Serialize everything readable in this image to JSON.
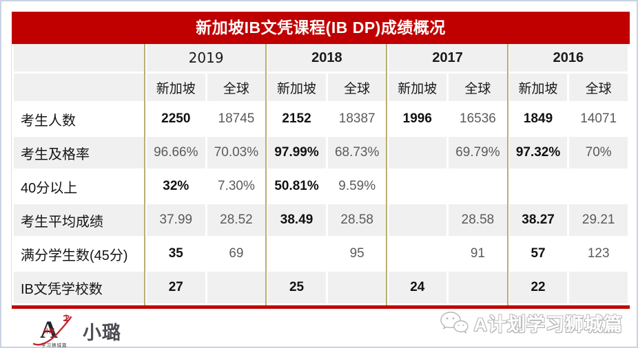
{
  "title": "新加坡IB文凭课程(IB DP)成绩概况",
  "colors": {
    "accent_red": "#c00000",
    "header_gray": "#f0f0f0",
    "group_border_tan": "#b9ae74",
    "value_black": "#111111",
    "value_gray": "#5a5a5a"
  },
  "table": {
    "years": [
      "2019",
      "2018",
      "2017",
      "2016"
    ],
    "region_headers": [
      "新加坡",
      "全球"
    ],
    "rows": [
      {
        "label": "考生人数",
        "values": [
          "2250",
          "18745",
          "2152",
          "18387",
          "1996",
          "16536",
          "1849",
          "14071"
        ],
        "styles": [
          "b",
          "g",
          "b",
          "g",
          "b",
          "g",
          "b",
          "g"
        ]
      },
      {
        "label": "考生及格率",
        "values": [
          "96.66%",
          "70.03%",
          "97.99%",
          "68.73%",
          "",
          "69.79%",
          "97.32%",
          "70%"
        ],
        "styles": [
          "g",
          "g",
          "b",
          "g",
          "e",
          "g",
          "b",
          "g"
        ]
      },
      {
        "label": "40分以上",
        "values": [
          "32%",
          "7.30%",
          "50.81%",
          "9.59%",
          "",
          "",
          "",
          ""
        ],
        "styles": [
          "b",
          "g",
          "b",
          "g",
          "e",
          "e",
          "e",
          "e"
        ]
      },
      {
        "label": "考生平均成绩",
        "values": [
          "37.99",
          "28.52",
          "38.49",
          "28.58",
          "",
          "28.58",
          "38.27",
          "29.21"
        ],
        "styles": [
          "g",
          "g",
          "b",
          "g",
          "e",
          "g",
          "b",
          "g"
        ]
      },
      {
        "label": "满分学生数(45分)",
        "values": [
          "35",
          "69",
          "",
          "95",
          "",
          "91",
          "57",
          "123"
        ],
        "styles": [
          "b",
          "g",
          "e",
          "g",
          "e",
          "g",
          "b",
          "g"
        ]
      },
      {
        "label": "IB文凭学校数",
        "values": [
          "27",
          "",
          "25",
          "",
          "24",
          "",
          "22",
          ""
        ],
        "styles": [
          "b",
          "e",
          "b",
          "e",
          "b",
          "e",
          "b",
          "e"
        ]
      }
    ]
  },
  "footer": {
    "logo_letter": "A",
    "logo_plan": "计划",
    "logo_tagline": "学习狮城篇",
    "publisher_name": "小璐",
    "watermark_text": "A计划学习狮城篇"
  }
}
